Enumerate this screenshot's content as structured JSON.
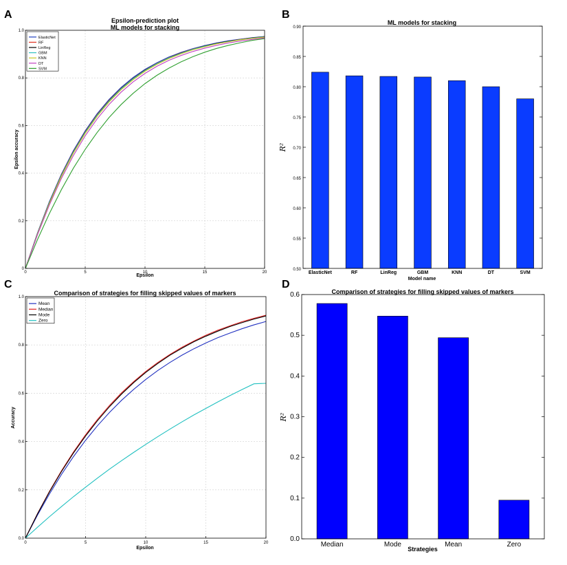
{
  "panels": {
    "a": "A",
    "b": "B",
    "c": "C",
    "d": "D"
  },
  "chart_data": [
    {
      "id": "A",
      "type": "line",
      "title": "Epsilon-prediction plot",
      "subtitle": "ML models for stacking",
      "xlabel": "Epsilon",
      "ylabel": "Epsilon accuracy",
      "xlim": [
        0,
        20
      ],
      "ylim": [
        0,
        1.0
      ],
      "xticks": [
        0,
        5,
        10,
        15,
        20
      ],
      "yticks": [
        0,
        0.2,
        0.4,
        0.6,
        0.8,
        1.0
      ],
      "ytick_labels": [
        "0",
        "0.2",
        "0.4",
        "0.6",
        "0.8",
        "1.0"
      ],
      "grid": true,
      "legend_position": "top-left",
      "x": [
        0,
        1,
        2,
        3,
        4,
        5,
        6,
        7,
        8,
        9,
        10,
        11,
        12,
        13,
        14,
        15,
        16,
        17,
        18,
        19,
        20
      ],
      "series": [
        {
          "name": "ElasticNet",
          "color": "#2040c0",
          "values": [
            0.0,
            0.148,
            0.28,
            0.395,
            0.494,
            0.578,
            0.65,
            0.71,
            0.76,
            0.802,
            0.836,
            0.864,
            0.888,
            0.907,
            0.923,
            0.936,
            0.947,
            0.956,
            0.963,
            0.969,
            0.974
          ]
        },
        {
          "name": "RF",
          "color": "#e03020",
          "values": [
            0.0,
            0.146,
            0.277,
            0.392,
            0.49,
            0.574,
            0.646,
            0.706,
            0.756,
            0.798,
            0.833,
            0.861,
            0.885,
            0.905,
            0.921,
            0.934,
            0.945,
            0.954,
            0.962,
            0.968,
            0.973
          ]
        },
        {
          "name": "LinReg",
          "color": "#000000",
          "values": [
            0.0,
            0.145,
            0.276,
            0.39,
            0.488,
            0.572,
            0.644,
            0.704,
            0.755,
            0.797,
            0.832,
            0.86,
            0.884,
            0.904,
            0.92,
            0.934,
            0.945,
            0.954,
            0.961,
            0.968,
            0.973
          ]
        },
        {
          "name": "GBM",
          "color": "#30c0c0",
          "values": [
            0.0,
            0.145,
            0.275,
            0.389,
            0.487,
            0.571,
            0.643,
            0.703,
            0.754,
            0.796,
            0.831,
            0.86,
            0.884,
            0.903,
            0.92,
            0.933,
            0.944,
            0.953,
            0.961,
            0.967,
            0.972
          ]
        },
        {
          "name": "KNN",
          "color": "#c8c820",
          "values": [
            0.0,
            0.143,
            0.272,
            0.385,
            0.483,
            0.567,
            0.639,
            0.699,
            0.75,
            0.792,
            0.828,
            0.857,
            0.881,
            0.901,
            0.918,
            0.931,
            0.943,
            0.952,
            0.96,
            0.966,
            0.971
          ]
        },
        {
          "name": "DT",
          "color": "#c040c0",
          "values": [
            0.0,
            0.14,
            0.266,
            0.377,
            0.473,
            0.557,
            0.628,
            0.689,
            0.74,
            0.783,
            0.819,
            0.849,
            0.874,
            0.894,
            0.911,
            0.925,
            0.937,
            0.947,
            0.955,
            0.962,
            0.968
          ]
        },
        {
          "name": "SVM",
          "color": "#30a030",
          "values": [
            0.0,
            0.12,
            0.23,
            0.33,
            0.42,
            0.5,
            0.571,
            0.634,
            0.688,
            0.735,
            0.776,
            0.811,
            0.841,
            0.867,
            0.889,
            0.908,
            0.924,
            0.937,
            0.948,
            0.958,
            0.965
          ]
        }
      ]
    },
    {
      "id": "B",
      "type": "bar",
      "title": "ML models for stacking",
      "xlabel": "Model name",
      "ylabel": "R²",
      "ylim": [
        0.5,
        0.9
      ],
      "yticks": [
        0.5,
        0.55,
        0.6,
        0.65,
        0.7,
        0.75,
        0.8,
        0.85,
        0.9
      ],
      "ytick_labels": [
        "0.50",
        "0.55",
        "0.60",
        "0.65",
        "0.70",
        "0.75",
        "0.80",
        "0.85",
        "0.90"
      ],
      "color": "#0a3cff",
      "categories": [
        "ElasticNet",
        "RF",
        "LinReg",
        "GBM",
        "KNN",
        "DT",
        "SVM"
      ],
      "values": [
        0.824,
        0.818,
        0.817,
        0.816,
        0.81,
        0.8,
        0.78
      ]
    },
    {
      "id": "C",
      "type": "line",
      "title": "Comparison of strategies for filling skipped values of markers",
      "xlabel": "Epsilon",
      "ylabel": "Accuracy",
      "xlim": [
        0,
        20
      ],
      "ylim": [
        0,
        1.0
      ],
      "xticks": [
        0,
        5,
        10,
        15,
        20
      ],
      "yticks": [
        0,
        0.2,
        0.4,
        0.6,
        0.8,
        1.0
      ],
      "ytick_labels": [
        "0.0",
        "0.2",
        "0.4",
        "0.6",
        "0.8",
        "1.0"
      ],
      "grid": true,
      "legend_position": "top-left",
      "x": [
        0,
        1,
        2,
        3,
        4,
        5,
        6,
        7,
        8,
        9,
        10,
        11,
        12,
        13,
        14,
        15,
        16,
        17,
        18,
        19,
        20
      ],
      "series": [
        {
          "name": "Mean",
          "color": "#2030c0",
          "values": [
            0.0,
            0.095,
            0.183,
            0.264,
            0.338,
            0.405,
            0.466,
            0.521,
            0.571,
            0.616,
            0.657,
            0.694,
            0.727,
            0.757,
            0.784,
            0.808,
            0.83,
            0.849,
            0.867,
            0.883,
            0.897
          ]
        },
        {
          "name": "Median",
          "color": "#e02020",
          "values": [
            0.0,
            0.101,
            0.194,
            0.279,
            0.357,
            0.428,
            0.492,
            0.55,
            0.602,
            0.648,
            0.69,
            0.727,
            0.76,
            0.79,
            0.816,
            0.84,
            0.861,
            0.879,
            0.896,
            0.91,
            0.923
          ]
        },
        {
          "name": "Mode",
          "color": "#000000",
          "values": [
            0.0,
            0.1,
            0.192,
            0.276,
            0.353,
            0.423,
            0.487,
            0.545,
            0.597,
            0.644,
            0.686,
            0.723,
            0.757,
            0.786,
            0.813,
            0.836,
            0.857,
            0.876,
            0.892,
            0.907,
            0.92
          ]
        },
        {
          "name": "Zero",
          "color": "#20c0c0",
          "values": [
            0.0,
            0.045,
            0.089,
            0.131,
            0.172,
            0.211,
            0.249,
            0.286,
            0.321,
            0.355,
            0.388,
            0.42,
            0.451,
            0.481,
            0.51,
            0.537,
            0.564,
            0.59,
            0.615,
            0.639,
            0.641
          ]
        }
      ]
    },
    {
      "id": "D",
      "type": "bar",
      "title": "Comparison of strategies for filling skipped values of markers",
      "xlabel": "Strategies",
      "ylabel": "R²",
      "ylim": [
        0.0,
        0.6
      ],
      "yticks": [
        0.0,
        0.1,
        0.2,
        0.3,
        0.4,
        0.5,
        0.6
      ],
      "ytick_labels": [
        "0.0",
        "0.1",
        "0.2",
        "0.3",
        "0.4",
        "0.5",
        "0.6"
      ],
      "color": "#0000ff",
      "categories": [
        "Median",
        "Mode",
        "Mean",
        "Zero"
      ],
      "values": [
        0.578,
        0.547,
        0.494,
        0.095
      ]
    }
  ]
}
